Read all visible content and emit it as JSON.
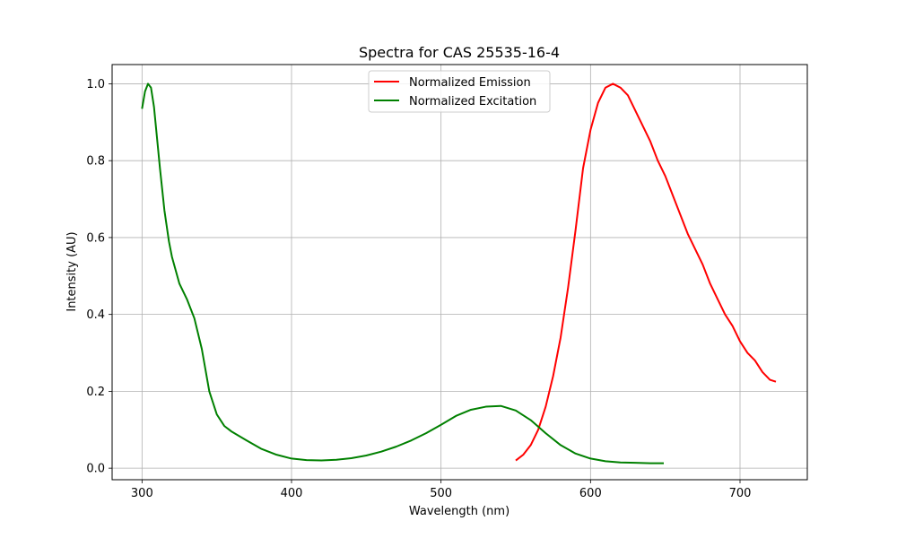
{
  "chart_data": {
    "type": "line",
    "title": "Spectra for CAS 25535-16-4",
    "xlabel": "Wavelength (nm)",
    "ylabel": "Intensity (AU)",
    "xlim": [
      280,
      745
    ],
    "ylim": [
      -0.03,
      1.05
    ],
    "xticks": [
      300,
      400,
      500,
      600,
      700
    ],
    "yticks": [
      0.0,
      0.2,
      0.4,
      0.6,
      0.8,
      1.0
    ],
    "xtick_labels": [
      "300",
      "400",
      "500",
      "600",
      "700"
    ],
    "ytick_labels": [
      "0.0",
      "0.2",
      "0.4",
      "0.6",
      "0.8",
      "1.0"
    ],
    "grid": true,
    "legend_position": "top-center",
    "series": [
      {
        "name": "Normalized Emission",
        "color": "#ff0000",
        "x": [
          550,
          555,
          560,
          565,
          570,
          575,
          580,
          585,
          590,
          595,
          600,
          605,
          610,
          615,
          620,
          625,
          630,
          635,
          640,
          645,
          650,
          655,
          660,
          665,
          670,
          675,
          680,
          685,
          690,
          695,
          700,
          705,
          710,
          715,
          720,
          724
        ],
        "y": [
          0.02,
          0.035,
          0.06,
          0.1,
          0.16,
          0.24,
          0.34,
          0.47,
          0.62,
          0.78,
          0.88,
          0.95,
          0.99,
          1.0,
          0.99,
          0.97,
          0.93,
          0.89,
          0.85,
          0.8,
          0.76,
          0.71,
          0.66,
          0.61,
          0.57,
          0.53,
          0.48,
          0.44,
          0.4,
          0.37,
          0.33,
          0.3,
          0.28,
          0.25,
          0.23,
          0.225
        ]
      },
      {
        "name": "Normalized Excitation",
        "color": "#008000",
        "x": [
          300,
          302,
          304,
          306,
          308,
          310,
          312,
          315,
          318,
          320,
          325,
          330,
          335,
          340,
          345,
          350,
          355,
          360,
          370,
          380,
          390,
          400,
          410,
          420,
          430,
          440,
          450,
          460,
          470,
          480,
          490,
          500,
          510,
          520,
          530,
          540,
          550,
          560,
          570,
          580,
          590,
          600,
          610,
          620,
          630,
          640,
          649
        ],
        "y": [
          0.935,
          0.98,
          1.0,
          0.99,
          0.94,
          0.86,
          0.78,
          0.67,
          0.59,
          0.55,
          0.48,
          0.44,
          0.39,
          0.31,
          0.2,
          0.14,
          0.11,
          0.095,
          0.072,
          0.05,
          0.035,
          0.025,
          0.021,
          0.02,
          0.022,
          0.026,
          0.033,
          0.043,
          0.056,
          0.072,
          0.091,
          0.113,
          0.136,
          0.152,
          0.16,
          0.162,
          0.15,
          0.125,
          0.091,
          0.06,
          0.038,
          0.025,
          0.018,
          0.015,
          0.014,
          0.013,
          0.013
        ]
      }
    ]
  }
}
